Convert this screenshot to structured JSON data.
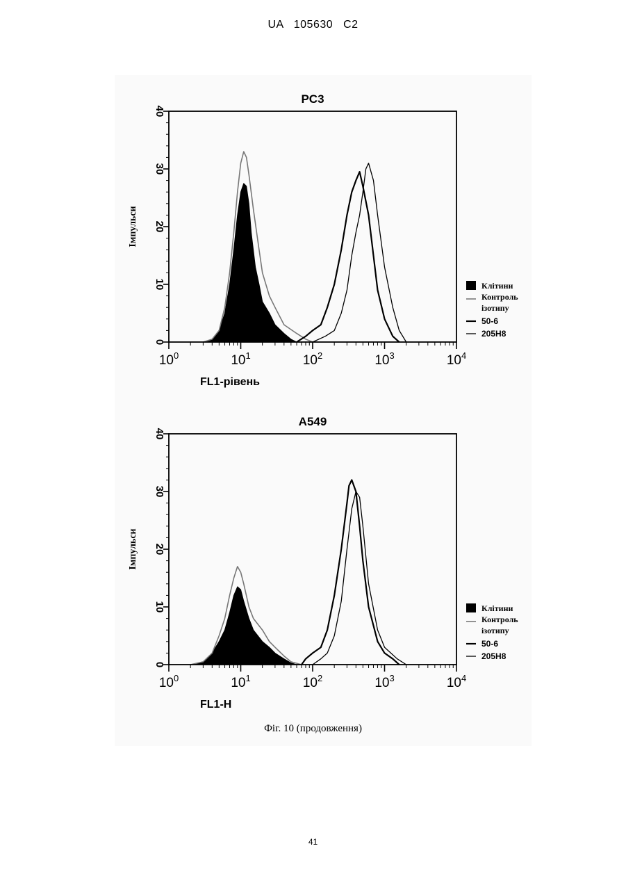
{
  "header": "UA   105630   C2",
  "page_number": "41",
  "caption": "Фіг. 10 (продовження)",
  "legend_labels": [
    "Клітини",
    "Контроль ізотипу",
    "50-6",
    "205H8"
  ],
  "chart_data": [
    {
      "type": "area",
      "title": "PC3",
      "xlabel": "FL1-рівень",
      "ylabel": "Імпульси",
      "x_scale": "log",
      "xlim": [
        1,
        10000
      ],
      "ylim": [
        0,
        40
      ],
      "yticks": [
        0,
        10,
        20,
        30,
        40
      ],
      "legend_position": "right",
      "series": [
        {
          "name": "Клітини",
          "style": "filled",
          "points": [
            [
              3,
              0
            ],
            [
              4,
              0.5
            ],
            [
              5,
              2
            ],
            [
              6,
              5
            ],
            [
              7,
              10
            ],
            [
              8,
              16
            ],
            [
              9,
              22
            ],
            [
              10,
              26
            ],
            [
              11,
              27.5
            ],
            [
              12,
              27
            ],
            [
              13,
              24
            ],
            [
              14,
              19
            ],
            [
              16,
              13
            ],
            [
              18,
              10
            ],
            [
              20,
              7
            ],
            [
              25,
              5
            ],
            [
              30,
              3
            ],
            [
              40,
              1.5
            ],
            [
              50,
              0.5
            ],
            [
              60,
              0
            ]
          ]
        },
        {
          "name": "Контроль ізотипу",
          "style": "grey",
          "points": [
            [
              3,
              0
            ],
            [
              4,
              0.5
            ],
            [
              5,
              2
            ],
            [
              6,
              6
            ],
            [
              7,
              12
            ],
            [
              8,
              19
            ],
            [
              9,
              26
            ],
            [
              10,
              31
            ],
            [
              11,
              33
            ],
            [
              12,
              32
            ],
            [
              13,
              29
            ],
            [
              15,
              23
            ],
            [
              18,
              16
            ],
            [
              20,
              12
            ],
            [
              25,
              8
            ],
            [
              30,
              6
            ],
            [
              40,
              3
            ],
            [
              60,
              1.5
            ],
            [
              80,
              0.5
            ],
            [
              100,
              0
            ]
          ]
        },
        {
          "name": "50-6",
          "style": "black",
          "points": [
            [
              60,
              0
            ],
            [
              80,
              1
            ],
            [
              100,
              2
            ],
            [
              130,
              3
            ],
            [
              160,
              6
            ],
            [
              200,
              10
            ],
            [
              250,
              16
            ],
            [
              300,
              22
            ],
            [
              350,
              26
            ],
            [
              400,
              28
            ],
            [
              450,
              29.5
            ],
            [
              500,
              27
            ],
            [
              600,
              22
            ],
            [
              700,
              15
            ],
            [
              800,
              9
            ],
            [
              1000,
              4
            ],
            [
              1300,
              1
            ],
            [
              1600,
              0
            ]
          ]
        },
        {
          "name": "205H8",
          "style": "thin",
          "points": [
            [
              100,
              0
            ],
            [
              150,
              1
            ],
            [
              200,
              2
            ],
            [
              250,
              5
            ],
            [
              300,
              9
            ],
            [
              350,
              15
            ],
            [
              400,
              19
            ],
            [
              450,
              22
            ],
            [
              500,
              26
            ],
            [
              550,
              30
            ],
            [
              600,
              31
            ],
            [
              700,
              28
            ],
            [
              800,
              22
            ],
            [
              1000,
              13
            ],
            [
              1300,
              6
            ],
            [
              1600,
              2
            ],
            [
              2000,
              0
            ]
          ]
        }
      ]
    },
    {
      "type": "area",
      "title": "A549",
      "xlabel": "FL1-H",
      "ylabel": "Імпульси",
      "x_scale": "log",
      "xlim": [
        1,
        10000
      ],
      "ylim": [
        0,
        40
      ],
      "yticks": [
        0,
        10,
        20,
        30,
        40
      ],
      "legend_position": "right",
      "series": [
        {
          "name": "Клітини",
          "style": "filled",
          "points": [
            [
              2,
              0
            ],
            [
              3,
              0.5
            ],
            [
              4,
              2
            ],
            [
              5,
              4
            ],
            [
              6,
              6
            ],
            [
              7,
              9
            ],
            [
              8,
              12
            ],
            [
              9,
              13.5
            ],
            [
              10,
              13
            ],
            [
              11,
              11
            ],
            [
              13,
              8
            ],
            [
              15,
              6
            ],
            [
              20,
              4
            ],
            [
              25,
              3
            ],
            [
              30,
              2
            ],
            [
              40,
              1
            ],
            [
              50,
              0.3
            ],
            [
              60,
              0
            ]
          ]
        },
        {
          "name": "Контроль ізотипу",
          "style": "grey",
          "points": [
            [
              2,
              0
            ],
            [
              3,
              0.5
            ],
            [
              4,
              2
            ],
            [
              5,
              5
            ],
            [
              6,
              8
            ],
            [
              7,
              12
            ],
            [
              8,
              15
            ],
            [
              9,
              17
            ],
            [
              10,
              16
            ],
            [
              11,
              14
            ],
            [
              13,
              10
            ],
            [
              15,
              8
            ],
            [
              20,
              6
            ],
            [
              25,
              4
            ],
            [
              30,
              3
            ],
            [
              40,
              1.5
            ],
            [
              50,
              0.5
            ],
            [
              70,
              0
            ]
          ]
        },
        {
          "name": "50-6",
          "style": "black",
          "points": [
            [
              70,
              0
            ],
            [
              80,
              1
            ],
            [
              100,
              2
            ],
            [
              130,
              3
            ],
            [
              160,
              6
            ],
            [
              200,
              12
            ],
            [
              250,
              20
            ],
            [
              300,
              28
            ],
            [
              320,
              31
            ],
            [
              350,
              32
            ],
            [
              400,
              30
            ],
            [
              450,
              24
            ],
            [
              500,
              18
            ],
            [
              600,
              10
            ],
            [
              800,
              4
            ],
            [
              1000,
              2
            ],
            [
              1300,
              1
            ],
            [
              1600,
              0
            ]
          ]
        },
        {
          "name": "205H8",
          "style": "thin",
          "points": [
            [
              100,
              0
            ],
            [
              130,
              1
            ],
            [
              160,
              2
            ],
            [
              200,
              5
            ],
            [
              250,
              11
            ],
            [
              300,
              20
            ],
            [
              350,
              27
            ],
            [
              400,
              30
            ],
            [
              450,
              29
            ],
            [
              500,
              24
            ],
            [
              600,
              14
            ],
            [
              800,
              6
            ],
            [
              1000,
              3
            ],
            [
              1500,
              1
            ],
            [
              2000,
              0
            ]
          ]
        }
      ]
    }
  ]
}
